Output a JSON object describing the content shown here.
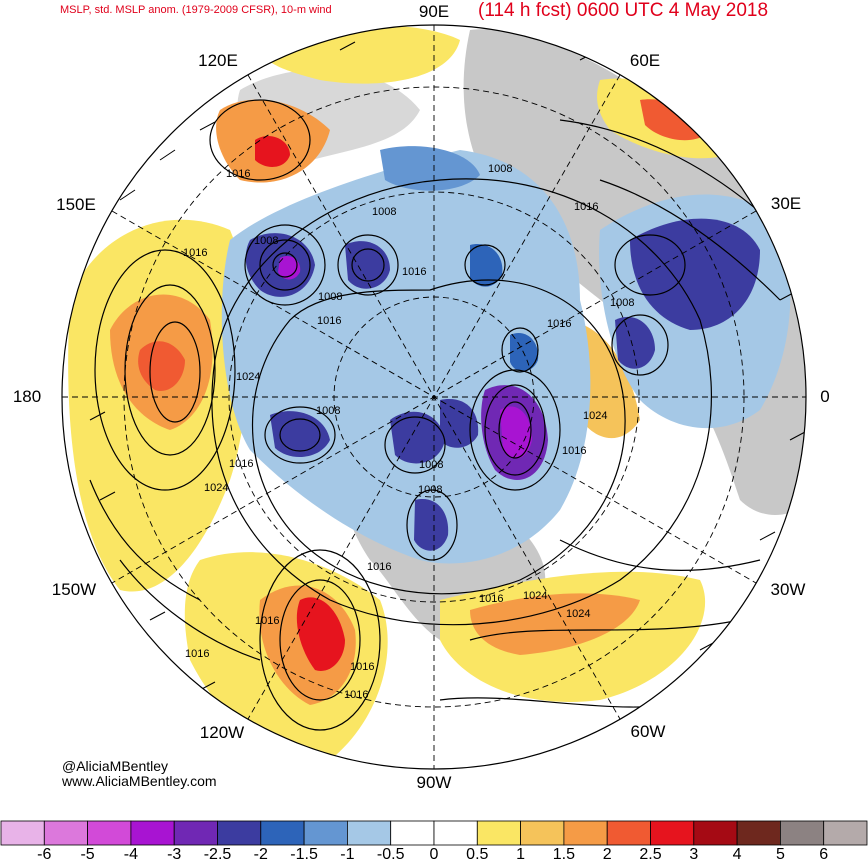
{
  "header": {
    "title_left": "MSLP, std. MSLP anom. (1979-2009 CFSR), 10-m wind",
    "title_right": "(114 h fcst) 0600 UTC 4 May 2018"
  },
  "longitude_labels": {
    "n90e": "90E",
    "n60e": "60E",
    "n30e": "30E",
    "n0": "0",
    "n30w": "30W",
    "n60w": "60W",
    "n90w": "90W",
    "n120w": "120W",
    "n150w": "150W",
    "n180": "180",
    "n150e": "150E",
    "n120e": "120E"
  },
  "credits": {
    "handle": "@AliciaMBentley",
    "website": "www.AliciaMBentley.com"
  },
  "isobar_labels": [
    "1008",
    "1016",
    "1008",
    "1016",
    "1016",
    "1008",
    "1016",
    "1008",
    "1024",
    "1008",
    "1016",
    "1008",
    "1016",
    "1008",
    "1016",
    "1024",
    "1016",
    "1024",
    "1024",
    "1016",
    "1024",
    "1016",
    "1016",
    "1016",
    "1016",
    "1016",
    "1008"
  ],
  "colorbar": {
    "colors": [
      "#e8b3e8",
      "#dc78dc",
      "#d24ad8",
      "#a814d2",
      "#7028b4",
      "#3c3ca0",
      "#2d64b9",
      "#6496d2",
      "#a5c8e6",
      "#ffffff",
      "#ffffff",
      "#fae664",
      "#f5c35a",
      "#f59b46",
      "#f05a32",
      "#e6141e",
      "#a50a14",
      "#6e281e",
      "#8c8282",
      "#b4aaaa"
    ],
    "ticks": [
      "-6",
      "-5",
      "-4",
      "-3",
      "-2.5",
      "-2",
      "-1.5",
      "-1",
      "-0.5",
      "0",
      "0.5",
      "1",
      "1.5",
      "2",
      "2.5",
      "3",
      "4",
      "5",
      "6"
    ]
  },
  "legend_colors": {
    "land": "#c8c8c8",
    "isobar": "#000000",
    "title": "#e0001b"
  }
}
